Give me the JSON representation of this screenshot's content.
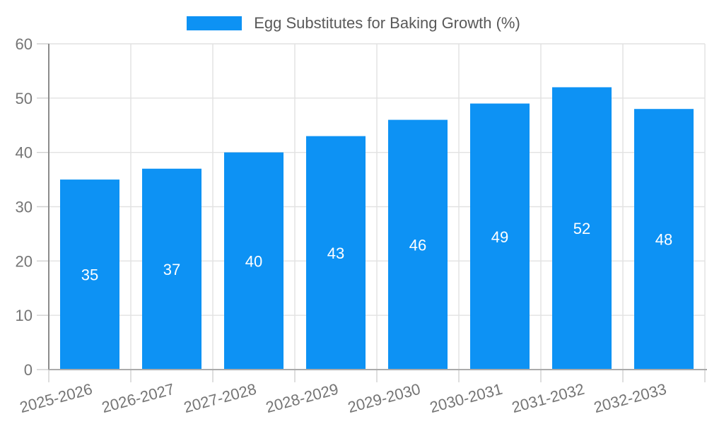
{
  "legend": {
    "label": "Egg Substitutes for Baking Growth (%)",
    "position": "top"
  },
  "chart_data": {
    "type": "bar",
    "title": "Egg Substitutes for Baking Growth (%)",
    "series_name": "Egg Substitutes for Baking Growth (%)",
    "categories": [
      "2025-2026",
      "2026-2027",
      "2027-2028",
      "2028-2029",
      "2029-2030",
      "2030-2031",
      "2031-2032",
      "2032-2033"
    ],
    "values": [
      35,
      37,
      40,
      43,
      46,
      49,
      52,
      48
    ],
    "xlabel": "",
    "ylabel": "",
    "ylim": [
      0,
      60
    ],
    "yticks": [
      0,
      10,
      20,
      30,
      40,
      50,
      60
    ],
    "grid": true,
    "legend_position": "top",
    "value_label_position": "inside-center",
    "x_label_rotation_deg": -15,
    "colors": {
      "bar": "#0d92f4",
      "grid": "#e2e2e2",
      "tick": "#d0d0d0",
      "y_axis": "#8c8c8c",
      "x_axis": "#ababab",
      "axis_text": "#757575",
      "value_label": "#ffffff",
      "legend_text": "#595959"
    }
  }
}
